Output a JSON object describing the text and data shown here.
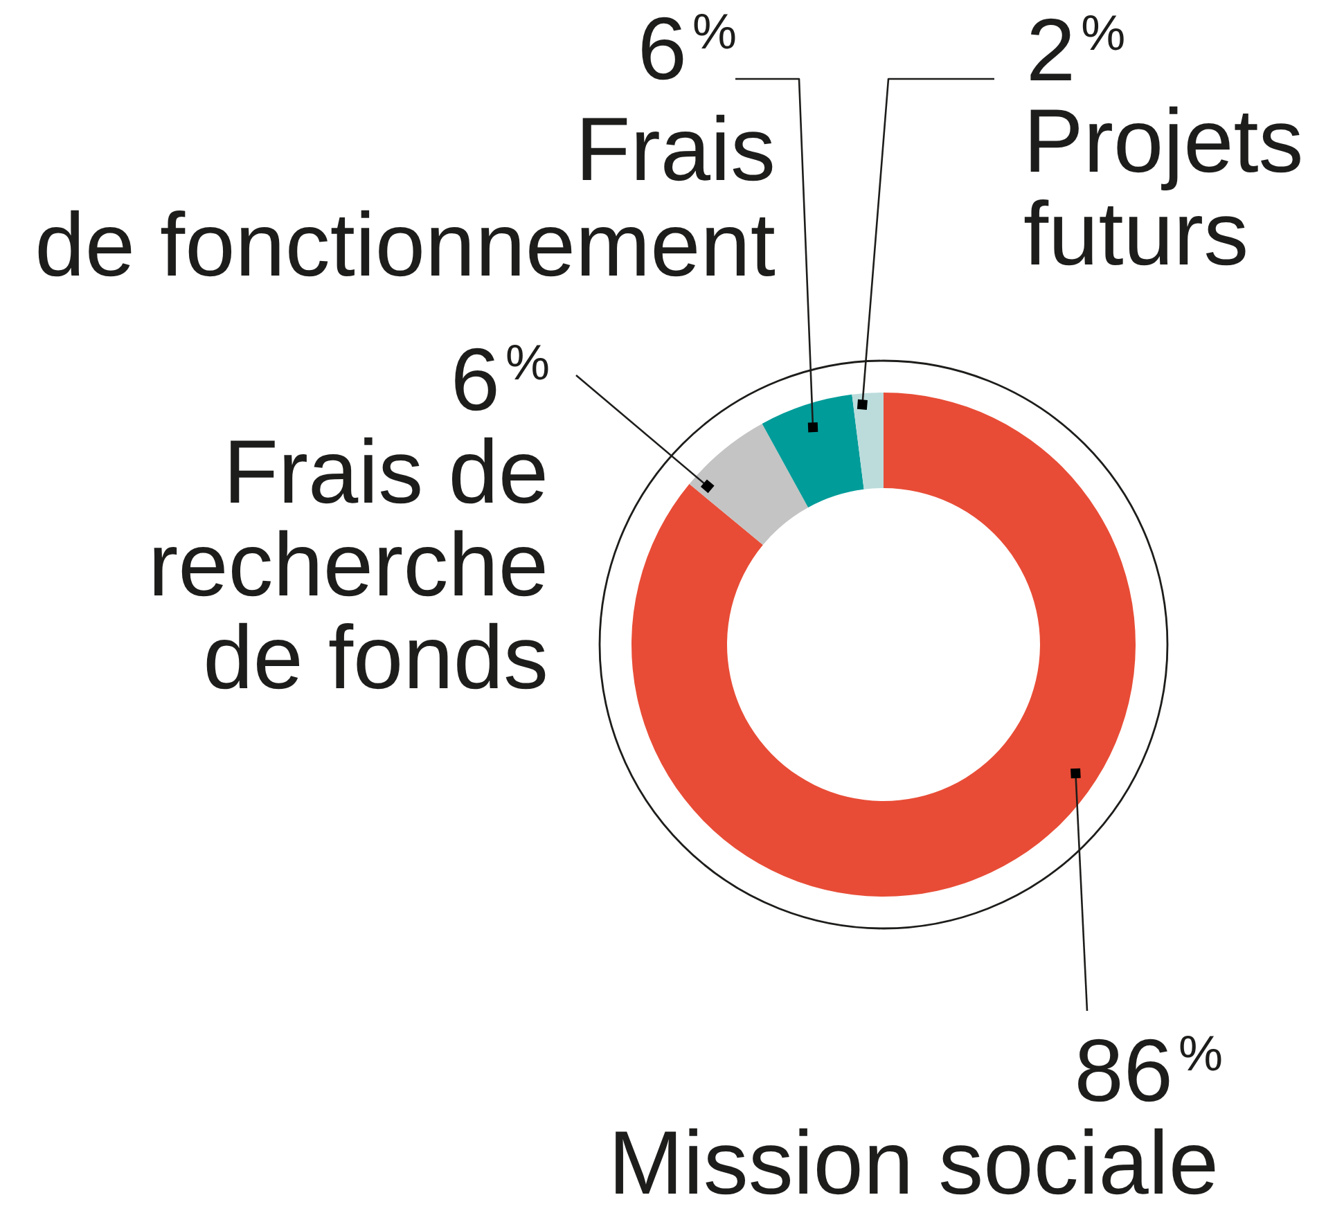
{
  "chart_data": {
    "type": "donut",
    "categories": [
      "Mission sociale",
      "Frais de recherche de fonds",
      "Frais de fonctionnement",
      "Projets futurs"
    ],
    "values": [
      86,
      6,
      6,
      2
    ],
    "colors": [
      "#e84c36",
      "#c4c4c4",
      "#009c99",
      "#bcdcdc"
    ],
    "value_labels": [
      "86$^{%}$",
      "6$^{%}$",
      "6$^{%}$",
      "2$^{%}$"
    ]
  }
}
